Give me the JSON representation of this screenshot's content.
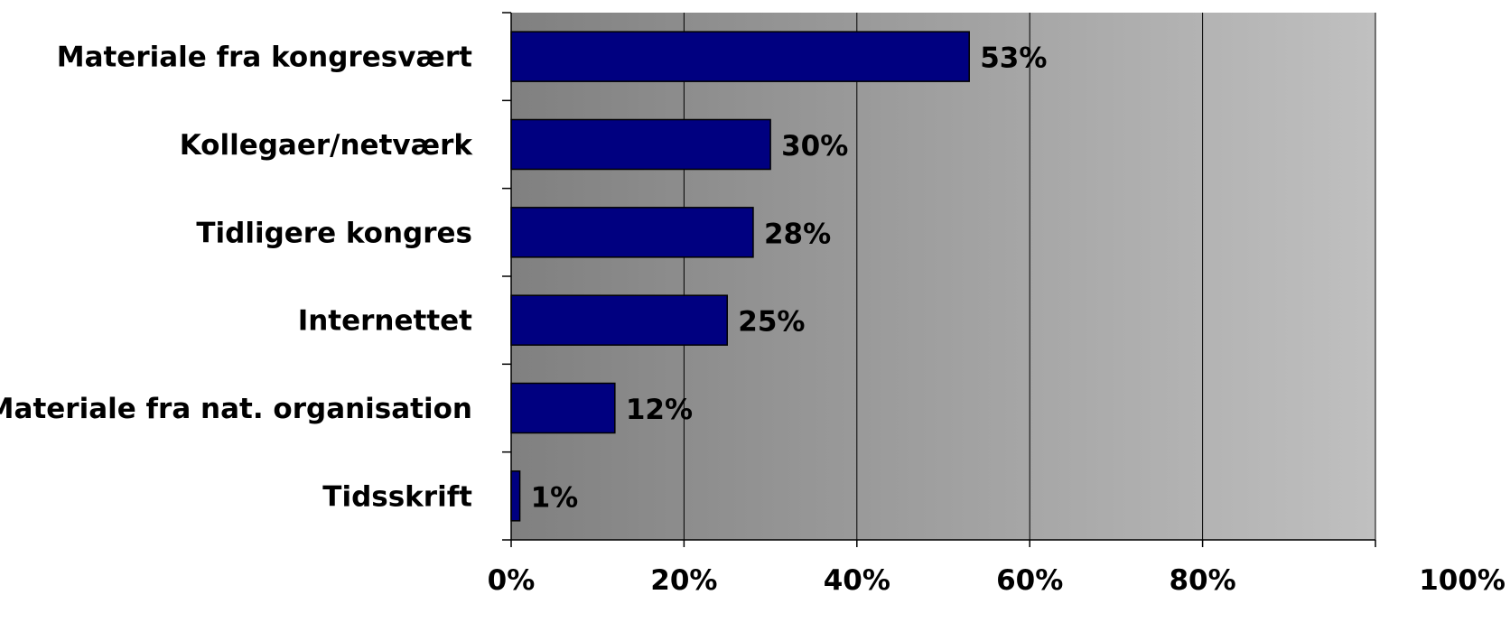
{
  "chart_data": {
    "type": "bar",
    "orientation": "horizontal",
    "categories": [
      "Materiale fra kongresvært",
      "Kollegaer/netværk",
      "Tidligere kongres",
      "Internettet",
      "Materiale fra nat. organisation",
      "Tidsskrift"
    ],
    "values": [
      53,
      30,
      28,
      25,
      12,
      1
    ],
    "data_labels": [
      "53%",
      "30%",
      "28%",
      "25%",
      "12%",
      "1%"
    ],
    "xlim": [
      0,
      100
    ],
    "x_ticks": [
      0,
      20,
      40,
      60,
      80,
      100
    ],
    "x_tick_labels": [
      "0%",
      "20%",
      "40%",
      "60%",
      "80%",
      "100%"
    ],
    "grid": "vertical",
    "legend": "none",
    "colors": {
      "bar_fill": "#000080",
      "bar_stroke": "#000000",
      "plot_bg_left": "#808080",
      "plot_bg_right": "#c0c0c0",
      "gridline": "#000000",
      "axis": "#000000"
    }
  }
}
